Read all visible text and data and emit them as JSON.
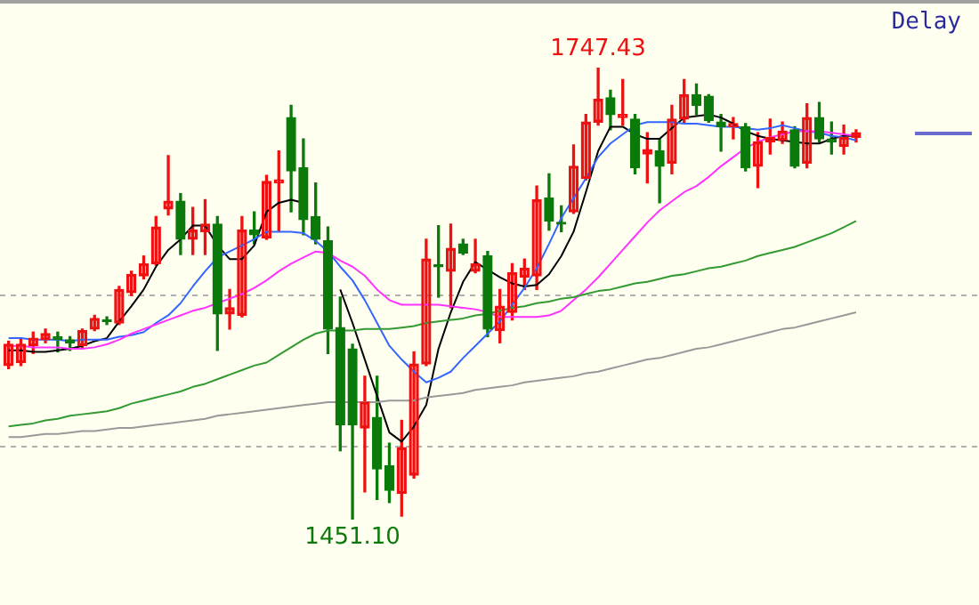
{
  "chart_data": {
    "type": "candlestick",
    "categories": [
      null,
      null,
      null,
      null,
      null,
      null,
      null,
      null,
      null,
      null,
      null,
      null,
      null,
      null,
      null,
      null,
      null,
      null,
      null,
      null,
      null,
      null,
      null,
      null,
      null,
      null,
      null,
      null,
      null,
      null,
      null,
      null,
      null,
      null,
      null,
      null,
      null,
      null,
      null,
      null,
      null,
      null,
      null,
      null,
      null,
      null,
      null,
      null,
      null,
      null,
      null,
      null,
      null,
      null,
      null,
      null,
      null,
      null,
      null,
      null,
      null,
      null,
      null,
      null,
      null,
      null,
      null,
      null,
      null,
      null
    ],
    "ohlc": [
      [
        1552,
        1568,
        1550,
        1566
      ],
      [
        1554,
        1570,
        1552,
        1566
      ],
      [
        1565,
        1574,
        1560,
        1570
      ],
      [
        1569,
        1576,
        1567,
        1573
      ],
      [
        1571,
        1574,
        1561,
        1569
      ],
      [
        1569,
        1571,
        1562,
        1567
      ],
      [
        1565,
        1576,
        1564,
        1575
      ],
      [
        1576,
        1585,
        1575,
        1583
      ],
      [
        1582,
        1584,
        1579,
        1581
      ],
      [
        1580,
        1604,
        1579,
        1602
      ],
      [
        1600,
        1614,
        1598,
        1612
      ],
      [
        1611,
        1624,
        1609,
        1619
      ],
      [
        1619,
        1650,
        1618,
        1643
      ],
      [
        1655,
        1690,
        1651,
        1660
      ],
      [
        1660,
        1665,
        1625,
        1635
      ],
      [
        1635,
        1656,
        1625,
        1641
      ],
      [
        1640,
        1661,
        1625,
        1645
      ],
      [
        1645,
        1650,
        1562,
        1586
      ],
      [
        1586,
        1602,
        1576,
        1590
      ],
      [
        1585,
        1650,
        1584,
        1641
      ],
      [
        1641,
        1653,
        1632,
        1638
      ],
      [
        1636,
        1677,
        1635,
        1673
      ],
      [
        1672,
        1693,
        1640,
        1674
      ],
      [
        1715,
        1723,
        1653,
        1680
      ],
      [
        1682,
        1701,
        1638,
        1648
      ],
      [
        1650,
        1672,
        1632,
        1635
      ],
      [
        1634,
        1643,
        1560,
        1576
      ],
      [
        1577,
        1597,
        1496,
        1513
      ],
      [
        1563,
        1566,
        1451.1,
        1513
      ],
      [
        1511,
        1545,
        1469,
        1528
      ],
      [
        1518,
        1545,
        1464,
        1484
      ],
      [
        1486,
        1501,
        1462,
        1470
      ],
      [
        1468,
        1516,
        1453,
        1498
      ],
      [
        1480,
        1561,
        1478,
        1553
      ],
      [
        1553,
        1635,
        1552,
        1622
      ],
      [
        1618,
        1644,
        1597,
        1617
      ],
      [
        1614,
        1645,
        1590,
        1629
      ],
      [
        1632,
        1635,
        1625,
        1626
      ],
      [
        1614,
        1635,
        1613,
        1619
      ],
      [
        1624,
        1627,
        1571,
        1576
      ],
      [
        1575,
        1602,
        1567,
        1591
      ],
      [
        1587,
        1619,
        1582,
        1613
      ],
      [
        1610,
        1622,
        1602,
        1616
      ],
      [
        1611,
        1670,
        1602,
        1661
      ],
      [
        1662,
        1678,
        1641,
        1647
      ],
      [
        1646,
        1657,
        1640,
        1645
      ],
      [
        1653,
        1697,
        1652,
        1683
      ],
      [
        1675,
        1717,
        1674,
        1712
      ],
      [
        1712,
        1747.43,
        1710,
        1727
      ],
      [
        1728,
        1733,
        1707,
        1717
      ],
      [
        1715,
        1740,
        1710,
        1717
      ],
      [
        1714,
        1717,
        1678,
        1682
      ],
      [
        1691,
        1705,
        1672,
        1694
      ],
      [
        1693,
        1701,
        1659,
        1683
      ],
      [
        1685,
        1723,
        1678,
        1714
      ],
      [
        1714,
        1740,
        1712,
        1730
      ],
      [
        1730,
        1737,
        1717,
        1723
      ],
      [
        1729,
        1730,
        1712,
        1713
      ],
      [
        1712,
        1717,
        1693,
        1709
      ],
      [
        1709,
        1715,
        1701,
        1711
      ],
      [
        1709,
        1711,
        1680,
        1682
      ],
      [
        1683,
        1705,
        1669,
        1699
      ],
      [
        1699,
        1714,
        1691,
        1702
      ],
      [
        1700,
        1712,
        1698,
        1706
      ],
      [
        1707,
        1709,
        1682,
        1683
      ],
      [
        1685,
        1724,
        1682,
        1715
      ],
      [
        1715,
        1725,
        1699,
        1701
      ],
      [
        1701,
        1712,
        1691,
        1699
      ],
      [
        1696,
        1710,
        1691,
        1702
      ],
      [
        1702,
        1707,
        1699,
        1705
      ]
    ],
    "series": [
      {
        "type": "line",
        "color": "#999999",
        "values": [
          1505,
          1505,
          1506,
          1507,
          1507,
          1508,
          1509,
          1509,
          1510,
          1511,
          1511,
          1512,
          1513,
          1514,
          1515,
          1516,
          1517,
          1519,
          1520,
          1521,
          1522,
          1523,
          1524,
          1525,
          1526,
          1527,
          1528,
          1528,
          1528,
          1528,
          1528,
          1529,
          1529,
          1529,
          1531,
          1532,
          1533,
          1534,
          1536,
          1537,
          1538,
          1539,
          1541,
          1542,
          1543,
          1544,
          1545,
          1547,
          1548,
          1550,
          1552,
          1554,
          1556,
          1557,
          1559,
          1561,
          1563,
          1564,
          1566,
          1568,
          1570,
          1572,
          1574,
          1576,
          1577,
          1579,
          1581,
          1583,
          1585,
          1587
        ]
      },
      {
        "type": "line",
        "color": "#339933",
        "values": [
          1512,
          1513,
          1514,
          1516,
          1517,
          1519,
          1520,
          1521,
          1522,
          1524,
          1527,
          1529,
          1531,
          1533,
          1535,
          1538,
          1540,
          1543,
          1546,
          1549,
          1552,
          1554,
          1559,
          1564,
          1569,
          1573,
          1575,
          1575,
          1575,
          1576,
          1576,
          1576,
          1577,
          1578,
          1580,
          1581,
          1582,
          1583,
          1585,
          1586,
          1588,
          1590,
          1591,
          1593,
          1594,
          1596,
          1597,
          1599,
          1601,
          1602,
          1604,
          1606,
          1607,
          1609,
          1611,
          1612,
          1614,
          1616,
          1617,
          1619,
          1621,
          1624,
          1626,
          1628,
          1630,
          1633,
          1636,
          1639,
          1643,
          1647
        ]
      },
      {
        "type": "line",
        "color": "#ff33ff",
        "values": [
          1565,
          1565,
          1564,
          1564,
          1564,
          1563,
          1563,
          1564,
          1566,
          1569,
          1573,
          1576,
          1579,
          1582,
          1585,
          1588,
          1590,
          1593,
          1596,
          1599,
          1603,
          1608,
          1614,
          1619,
          1623,
          1627,
          1626,
          1621,
          1617,
          1611,
          1602,
          1595,
          1592,
          1592,
          1592,
          1592,
          1591,
          1590,
          1589,
          1587,
          1584,
          1584,
          1584,
          1584,
          1585,
          1588,
          1595,
          1602,
          1610,
          1619,
          1628,
          1637,
          1646,
          1654,
          1660,
          1666,
          1670,
          1676,
          1683,
          1689,
          1695,
          1699,
          1702,
          1704,
          1706,
          1706,
          1706,
          1705,
          1704,
          1703
        ]
      },
      {
        "type": "line",
        "color": "#3366ff",
        "values": [
          1570,
          1570,
          1569,
          1569,
          1569,
          1568,
          1569,
          1569,
          1569,
          1571,
          1572,
          1574,
          1580,
          1585,
          1593,
          1604,
          1614,
          1623,
          1627,
          1631,
          1635,
          1640,
          1640,
          1640,
          1639,
          1634,
          1627,
          1617,
          1608,
          1595,
          1580,
          1565,
          1556,
          1548,
          1541,
          1544,
          1548,
          1557,
          1565,
          1573,
          1581,
          1592,
          1603,
          1616,
          1632,
          1649,
          1662,
          1675,
          1689,
          1698,
          1704,
          1710,
          1712,
          1712,
          1712,
          1711,
          1711,
          1710,
          1709,
          1709,
          1708,
          1707,
          1708,
          1710,
          1708,
          1706,
          1705,
          1703,
          1702,
          1700
        ]
      },
      {
        "type": "line",
        "color": "#000000",
        "values": [
          1562,
          1562,
          1561,
          1561,
          1562,
          1563,
          1565,
          1568,
          1570,
          1581,
          1591,
          1602,
          1617,
          1628,
          1635,
          1644,
          1644,
          1631,
          1622,
          1622,
          1631,
          1653,
          1659,
          1661,
          1659,
          null,
          null,
          1602,
          1580,
          1556,
          1532,
          1508,
          1502,
          1512,
          1526,
          1563,
          1587,
          1607,
          1620,
          1615,
          1610,
          1606,
          1604,
          1605,
          1612,
          1624,
          1640,
          1666,
          1693,
          1709,
          1709,
          1704,
          1701,
          1701,
          1708,
          1715,
          1716,
          1717,
          1715,
          1711,
          1706,
          1703,
          1701,
          1700,
          1699,
          1698,
          1698,
          1701,
          1703,
          1703
        ]
      }
    ],
    "yticks": [
      {
        "value": 1598,
        "label": null
      },
      {
        "value": 1499,
        "label": null
      }
    ],
    "grid": "y",
    "legend": false,
    "annotations": [
      {
        "text": "1747.43",
        "y": 1747.43
      },
      {
        "text": "1451.10",
        "y": 1451.1
      },
      "Delay"
    ]
  }
}
